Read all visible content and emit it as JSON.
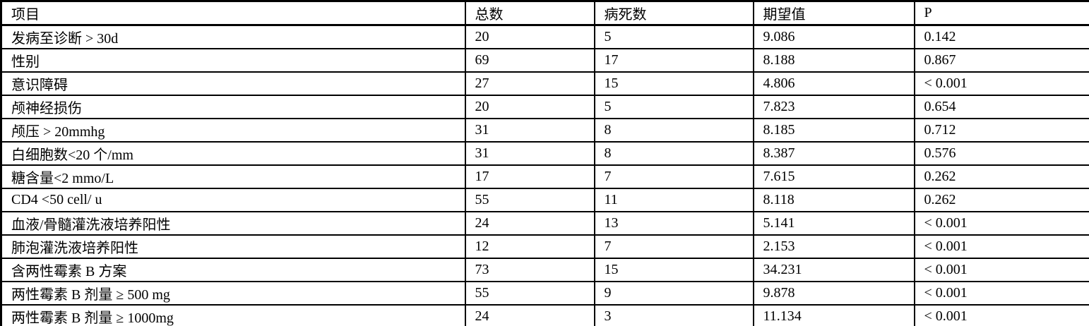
{
  "table": {
    "columns": [
      "项目",
      "总数",
      "病死数",
      "期望值",
      "P"
    ],
    "rows": [
      [
        "发病至诊断 > 30d",
        "20",
        "5",
        "9.086",
        "0.142"
      ],
      [
        "性别",
        "69",
        "17",
        "8.188",
        "0.867"
      ],
      [
        "意识障碍",
        "27",
        "15",
        "4.806",
        "< 0.001"
      ],
      [
        "颅神经损伤",
        "20",
        "5",
        "7.823",
        "0.654"
      ],
      [
        "颅压 > 20mmhg",
        "31",
        "8",
        "8.185",
        "0.712"
      ],
      [
        "白细胞数<20 个/mm",
        "31",
        "8",
        "8.387",
        "0.576"
      ],
      [
        "糖含量<2 mmo/L",
        "17",
        "7",
        "7.615",
        "0.262"
      ],
      [
        "CD4 <50 cell/ u",
        "55",
        "11",
        "8.118",
        "0.262"
      ],
      [
        "血液/骨髓灌洗液培养阳性",
        "24",
        "13",
        "5.141",
        "< 0.001"
      ],
      [
        "肺泡灌洗液培养阳性",
        "12",
        "7",
        "2.153",
        "< 0.001"
      ],
      [
        "含两性霉素 B 方案",
        "73",
        "15",
        "34.231",
        "< 0.001"
      ],
      [
        "两性霉素 B 剂量 ≥ 500 mg",
        "55",
        "9",
        "9.878",
        "< 0.001"
      ],
      [
        "两性霉素 B 剂量 ≥ 1000mg",
        "24",
        "3",
        "11.134",
        "< 0.001"
      ]
    ]
  },
  "colors": {
    "border": "#000000",
    "background": "#ffffff",
    "text": "#000000"
  }
}
